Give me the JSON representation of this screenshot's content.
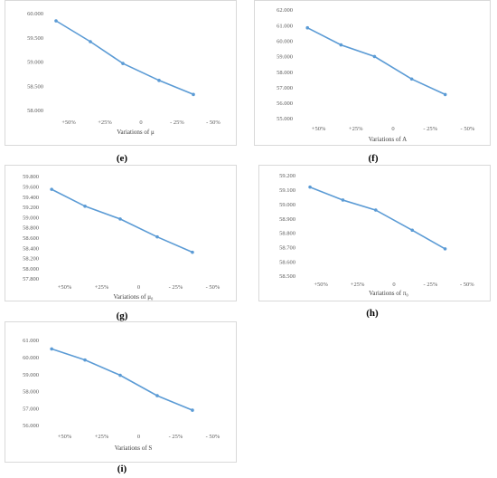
{
  "chart_data": [
    {
      "type": "line",
      "caption": "(e)",
      "xlabel": "Variations of μ",
      "categories": [
        "+50%",
        "+25%",
        "0",
        "- 25%",
        "- 50%"
      ],
      "yticks": [
        "58.000",
        "58.500",
        "59.000",
        "59.500",
        "60.000"
      ],
      "ylim": [
        58.0,
        60.0
      ],
      "x": [
        -0.35,
        0.6,
        1.5,
        2.5,
        3.45
      ],
      "values": [
        59.85,
        59.42,
        58.97,
        58.62,
        58.33
      ],
      "line_color": "#5b9bd5"
    },
    {
      "type": "line",
      "caption": "(f)",
      "xlabel": "Variations of A",
      "categories": [
        "+50%",
        "+25%",
        "0",
        "- 25%",
        "- 50%"
      ],
      "yticks": [
        "55.000",
        "56.000",
        "57.000",
        "58.000",
        "59.000",
        "60.000",
        "61.000",
        "62.000"
      ],
      "ylim": [
        55.0,
        62.0
      ],
      "x": [
        -0.3,
        0.6,
        1.5,
        2.5,
        3.4
      ],
      "values": [
        60.85,
        59.75,
        59.0,
        57.55,
        56.55
      ],
      "line_color": "#5b9bd5"
    },
    {
      "type": "line",
      "caption": "(g)",
      "xlabel": "Variations of μ₀",
      "categories": [
        "+50%",
        "+25%",
        "0",
        "- 25%",
        "- 50%"
      ],
      "yticks": [
        "57.800",
        "58.000",
        "58.200",
        "58.400",
        "58.600",
        "58.800",
        "59.000",
        "59.200",
        "59.400",
        "59.600",
        "59.800"
      ],
      "ylim": [
        57.8,
        59.8
      ],
      "x": [
        -0.35,
        0.55,
        1.5,
        2.5,
        3.45
      ],
      "values": [
        59.55,
        59.22,
        58.97,
        58.62,
        58.32
      ],
      "line_color": "#5b9bd5"
    },
    {
      "type": "line",
      "caption": "(h)",
      "xlabel": "Variations of π₀",
      "categories": [
        "+50%",
        "+25%",
        "0",
        "- 25%",
        "- 50%"
      ],
      "yticks": [
        "58.500",
        "58.600",
        "58.700",
        "58.800",
        "58.900",
        "59.000",
        "59.100",
        "59.200"
      ],
      "ylim": [
        58.5,
        59.2
      ],
      "x": [
        -0.3,
        0.6,
        1.5,
        2.5,
        3.4
      ],
      "values": [
        59.12,
        59.03,
        58.96,
        58.82,
        58.69
      ],
      "line_color": "#5b9bd5"
    },
    {
      "type": "line",
      "caption": "(i)",
      "xlabel": "Variations of S",
      "categories": [
        "+50%",
        "+25%",
        "0",
        "- 25%",
        "- 50%"
      ],
      "yticks": [
        "56.000",
        "57.000",
        "58.000",
        "59.000",
        "60.000",
        "61.000"
      ],
      "ylim": [
        56.0,
        61.0
      ],
      "x": [
        -0.35,
        0.55,
        1.5,
        2.5,
        3.45
      ],
      "values": [
        60.5,
        59.85,
        58.95,
        57.75,
        56.9
      ],
      "line_color": "#5b9bd5"
    }
  ]
}
